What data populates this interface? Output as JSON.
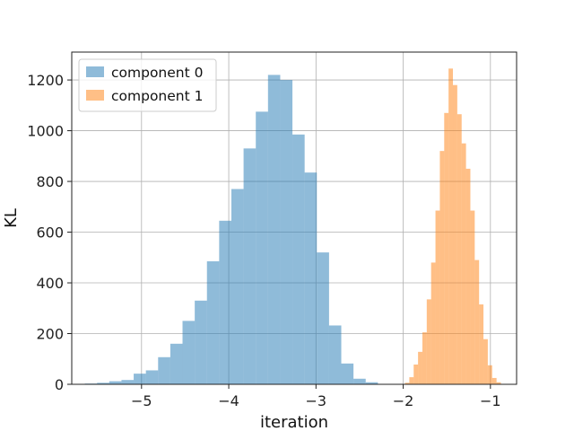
{
  "chart_data": {
    "type": "bar",
    "subtype": "histogram",
    "xlabel": "iteration",
    "ylabel": "KL",
    "xlim": [
      -5.8,
      -0.7
    ],
    "ylim": [
      0,
      1310
    ],
    "xticks": [
      -5,
      -4,
      -3,
      -2,
      -1
    ],
    "xtick_labels": [
      "−5",
      "−4",
      "−3",
      "−2",
      "−1"
    ],
    "yticks": [
      0,
      200,
      400,
      600,
      800,
      1000,
      1200
    ],
    "ytick_labels": [
      "0",
      "200",
      "400",
      "600",
      "800",
      "1000",
      "1200"
    ],
    "grid": true,
    "legend_position": "top-left",
    "series": [
      {
        "name": "component 0",
        "color": "#1f77b4",
        "alpha": 0.5,
        "bins": [
          [
            -5.65,
            -5.51,
            3
          ],
          [
            -5.51,
            -5.37,
            6
          ],
          [
            -5.37,
            -5.23,
            12
          ],
          [
            -5.23,
            -5.09,
            17
          ],
          [
            -5.09,
            -4.95,
            42
          ],
          [
            -4.95,
            -4.81,
            55
          ],
          [
            -4.81,
            -4.67,
            107
          ],
          [
            -4.67,
            -4.53,
            160
          ],
          [
            -4.53,
            -4.39,
            250
          ],
          [
            -4.39,
            -4.25,
            330
          ],
          [
            -4.25,
            -4.11,
            485
          ],
          [
            -4.11,
            -3.97,
            645
          ],
          [
            -3.97,
            -3.83,
            770
          ],
          [
            -3.83,
            -3.69,
            930
          ],
          [
            -3.69,
            -3.55,
            1075
          ],
          [
            -3.55,
            -3.41,
            1220
          ],
          [
            -3.41,
            -3.27,
            1200
          ],
          [
            -3.27,
            -3.13,
            985
          ],
          [
            -3.13,
            -2.99,
            835
          ],
          [
            -2.99,
            -2.85,
            520
          ],
          [
            -2.85,
            -2.71,
            232
          ],
          [
            -2.71,
            -2.57,
            82
          ],
          [
            -2.57,
            -2.43,
            22
          ],
          [
            -2.43,
            -2.29,
            8
          ]
        ]
      },
      {
        "name": "component 1",
        "color": "#ff7f0e",
        "alpha": 0.5,
        "bins": [
          [
            -1.98,
            -1.93,
            6
          ],
          [
            -1.93,
            -1.88,
            28
          ],
          [
            -1.88,
            -1.83,
            78
          ],
          [
            -1.83,
            -1.78,
            128
          ],
          [
            -1.78,
            -1.73,
            205
          ],
          [
            -1.73,
            -1.68,
            335
          ],
          [
            -1.68,
            -1.63,
            480
          ],
          [
            -1.63,
            -1.58,
            685
          ],
          [
            -1.58,
            -1.53,
            920
          ],
          [
            -1.53,
            -1.48,
            1070
          ],
          [
            -1.48,
            -1.43,
            1245
          ],
          [
            -1.43,
            -1.38,
            1180
          ],
          [
            -1.38,
            -1.33,
            1065
          ],
          [
            -1.33,
            -1.28,
            950
          ],
          [
            -1.28,
            -1.23,
            850
          ],
          [
            -1.23,
            -1.18,
            685
          ],
          [
            -1.18,
            -1.13,
            490
          ],
          [
            -1.13,
            -1.08,
            315
          ],
          [
            -1.08,
            -1.03,
            178
          ],
          [
            -1.03,
            -0.98,
            75
          ],
          [
            -0.98,
            -0.93,
            25
          ],
          [
            -0.93,
            -0.88,
            8
          ]
        ]
      }
    ]
  }
}
